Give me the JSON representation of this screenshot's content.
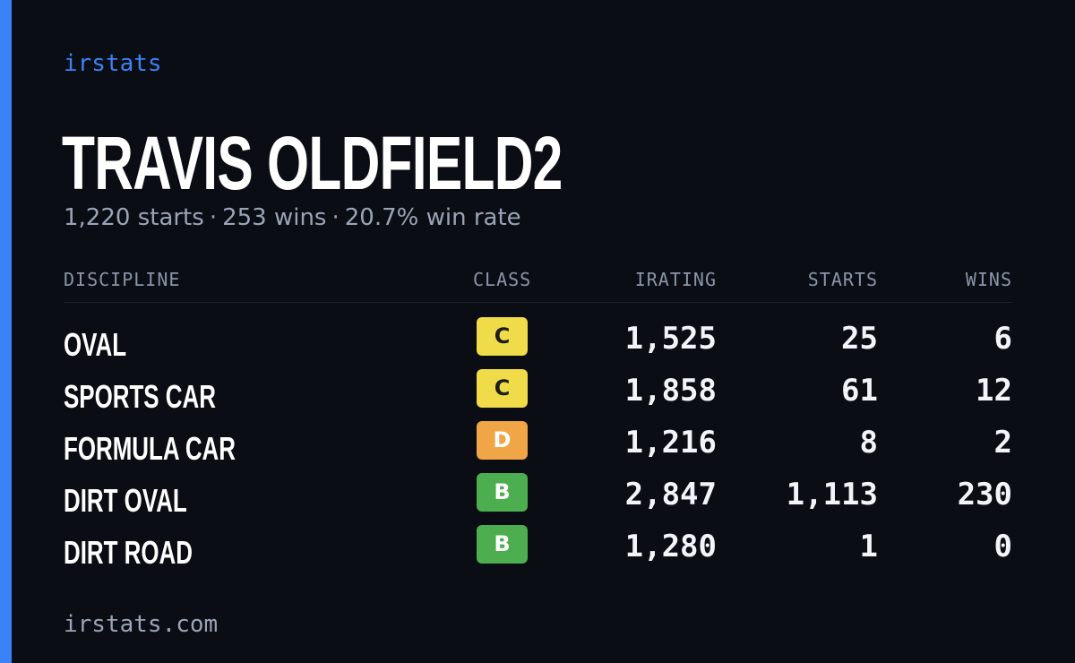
{
  "brand": "irstats",
  "driver_name": "TRAVIS OLDFIELD2",
  "summary": {
    "starts": "1,220 starts",
    "wins": "253 wins",
    "win_rate": "20.7% win rate",
    "separator": "·"
  },
  "columns": {
    "discipline": "DISCIPLINE",
    "class": "CLASS",
    "irating": "IRATING",
    "starts": "STARTS",
    "wins": "WINS"
  },
  "class_colors": {
    "C": {
      "bg": "#f0dc48",
      "fg": "#1c1c1c"
    },
    "D": {
      "bg": "#f0a646",
      "fg": "#ffffff"
    },
    "B": {
      "bg": "#4cae4f",
      "fg": "#ffffff"
    }
  },
  "rows": [
    {
      "discipline": "OVAL",
      "class": "C",
      "irating": "1,525",
      "starts": "25",
      "wins": "6"
    },
    {
      "discipline": "SPORTS CAR",
      "class": "C",
      "irating": "1,858",
      "starts": "61",
      "wins": "12"
    },
    {
      "discipline": "FORMULA CAR",
      "class": "D",
      "irating": "1,216",
      "starts": "8",
      "wins": "2"
    },
    {
      "discipline": "DIRT OVAL",
      "class": "B",
      "irating": "2,847",
      "starts": "1,113",
      "wins": "230"
    },
    {
      "discipline": "DIRT ROAD",
      "class": "B",
      "irating": "1,280",
      "starts": "1",
      "wins": "0"
    }
  ],
  "footer": "irstats.com",
  "accent_color": "#3b82f6"
}
